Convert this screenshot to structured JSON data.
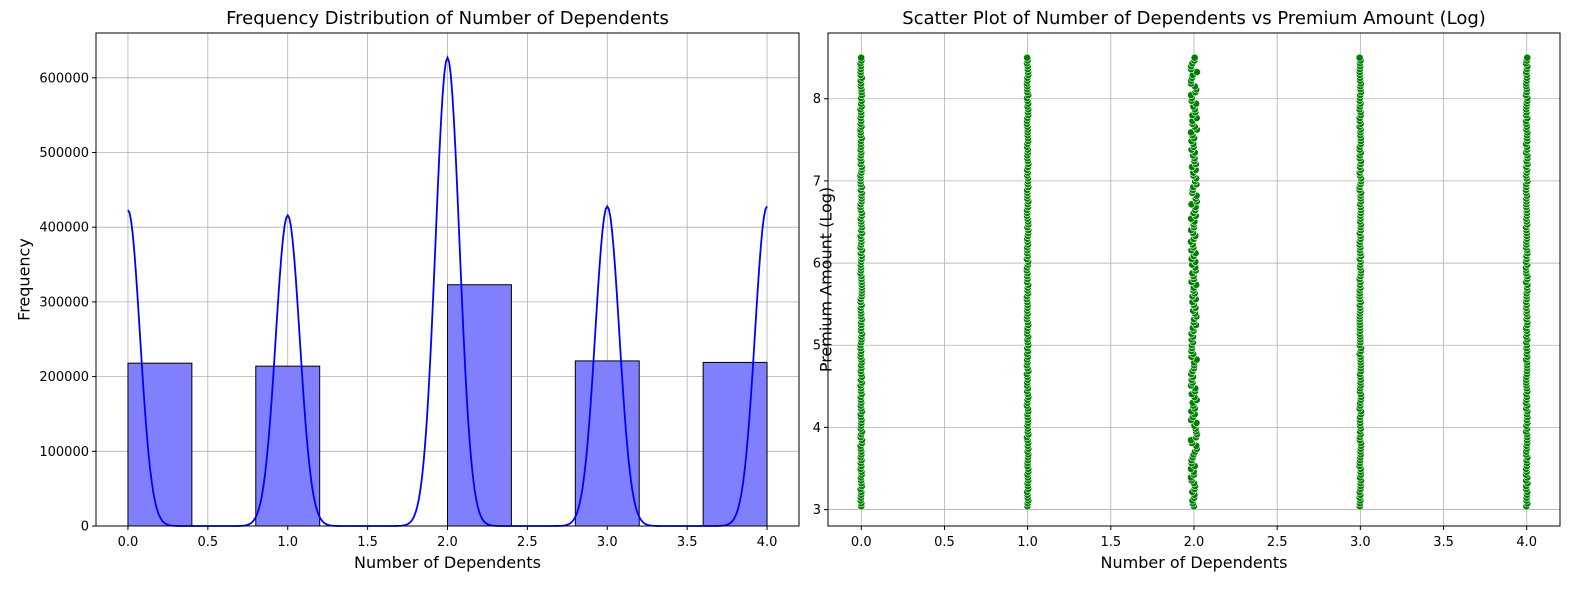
{
  "chart_data": [
    {
      "type": "bar",
      "title": "Frequency Distribution of Number of Dependents",
      "xlabel": "Number of Dependents",
      "ylabel": "Frequency",
      "xlim": [
        -0.2,
        4.2
      ],
      "ylim": [
        0,
        660000
      ],
      "xticks": [
        0.0,
        0.5,
        1.0,
        1.5,
        2.0,
        2.5,
        3.0,
        3.5,
        4.0
      ],
      "xtick_labels": [
        "0.0",
        "0.5",
        "1.0",
        "1.5",
        "2.0",
        "2.5",
        "3.0",
        "3.5",
        "4.0"
      ],
      "yticks": [
        0,
        100000,
        200000,
        300000,
        400000,
        500000,
        600000
      ],
      "ytick_labels": [
        "0",
        "100000",
        "200000",
        "300000",
        "400000",
        "500000",
        "600000"
      ],
      "grid": true,
      "bar_color": "#8080ff",
      "bar_edge_color": "#000000",
      "bins": [
        {
          "x0": 0.0,
          "x1": 0.4,
          "value": 218000
        },
        {
          "x0": 0.8,
          "x1": 1.2,
          "value": 214000
        },
        {
          "x0": 2.0,
          "x1": 2.4,
          "value": 323000
        },
        {
          "x0": 2.8,
          "x1": 3.2,
          "value": 221000
        },
        {
          "x0": 3.6,
          "x1": 4.0,
          "value": 219000
        }
      ],
      "kde": {
        "color": "#0000ff",
        "peaks": [
          {
            "x": 0.0,
            "value": 423000
          },
          {
            "x": 1.0,
            "value": 416000
          },
          {
            "x": 2.0,
            "value": 627000
          },
          {
            "x": 3.0,
            "value": 428000
          },
          {
            "x": 4.0,
            "value": 428000
          }
        ],
        "x_range": [
          0.0,
          4.0
        ]
      }
    },
    {
      "type": "scatter",
      "title": "Scatter Plot of Number of Dependents vs Premium Amount (Log)",
      "xlabel": "Number of Dependents",
      "ylabel": "Premium Amount (Log)",
      "xlim": [
        -0.2,
        4.2
      ],
      "ylim": [
        2.8,
        8.8
      ],
      "xticks": [
        0.0,
        0.5,
        1.0,
        1.5,
        2.0,
        2.5,
        3.0,
        3.5,
        4.0
      ],
      "xtick_labels": [
        "0.0",
        "0.5",
        "1.0",
        "1.5",
        "2.0",
        "2.5",
        "3.0",
        "3.5",
        "4.0"
      ],
      "yticks": [
        3,
        4,
        5,
        6,
        7,
        8
      ],
      "ytick_labels": [
        "3",
        "4",
        "5",
        "6",
        "7",
        "8"
      ],
      "grid": true,
      "point_color": "#008000",
      "series": [
        {
          "x": 0,
          "y_min": 3.04,
          "y_max": 8.5
        },
        {
          "x": 1,
          "y_min": 3.04,
          "y_max": 8.5
        },
        {
          "x": 2,
          "y_min": 3.04,
          "y_max": 8.5
        },
        {
          "x": 3,
          "y_min": 3.04,
          "y_max": 8.5
        },
        {
          "x": 4,
          "y_min": 3.04,
          "y_max": 8.5
        }
      ]
    }
  ]
}
